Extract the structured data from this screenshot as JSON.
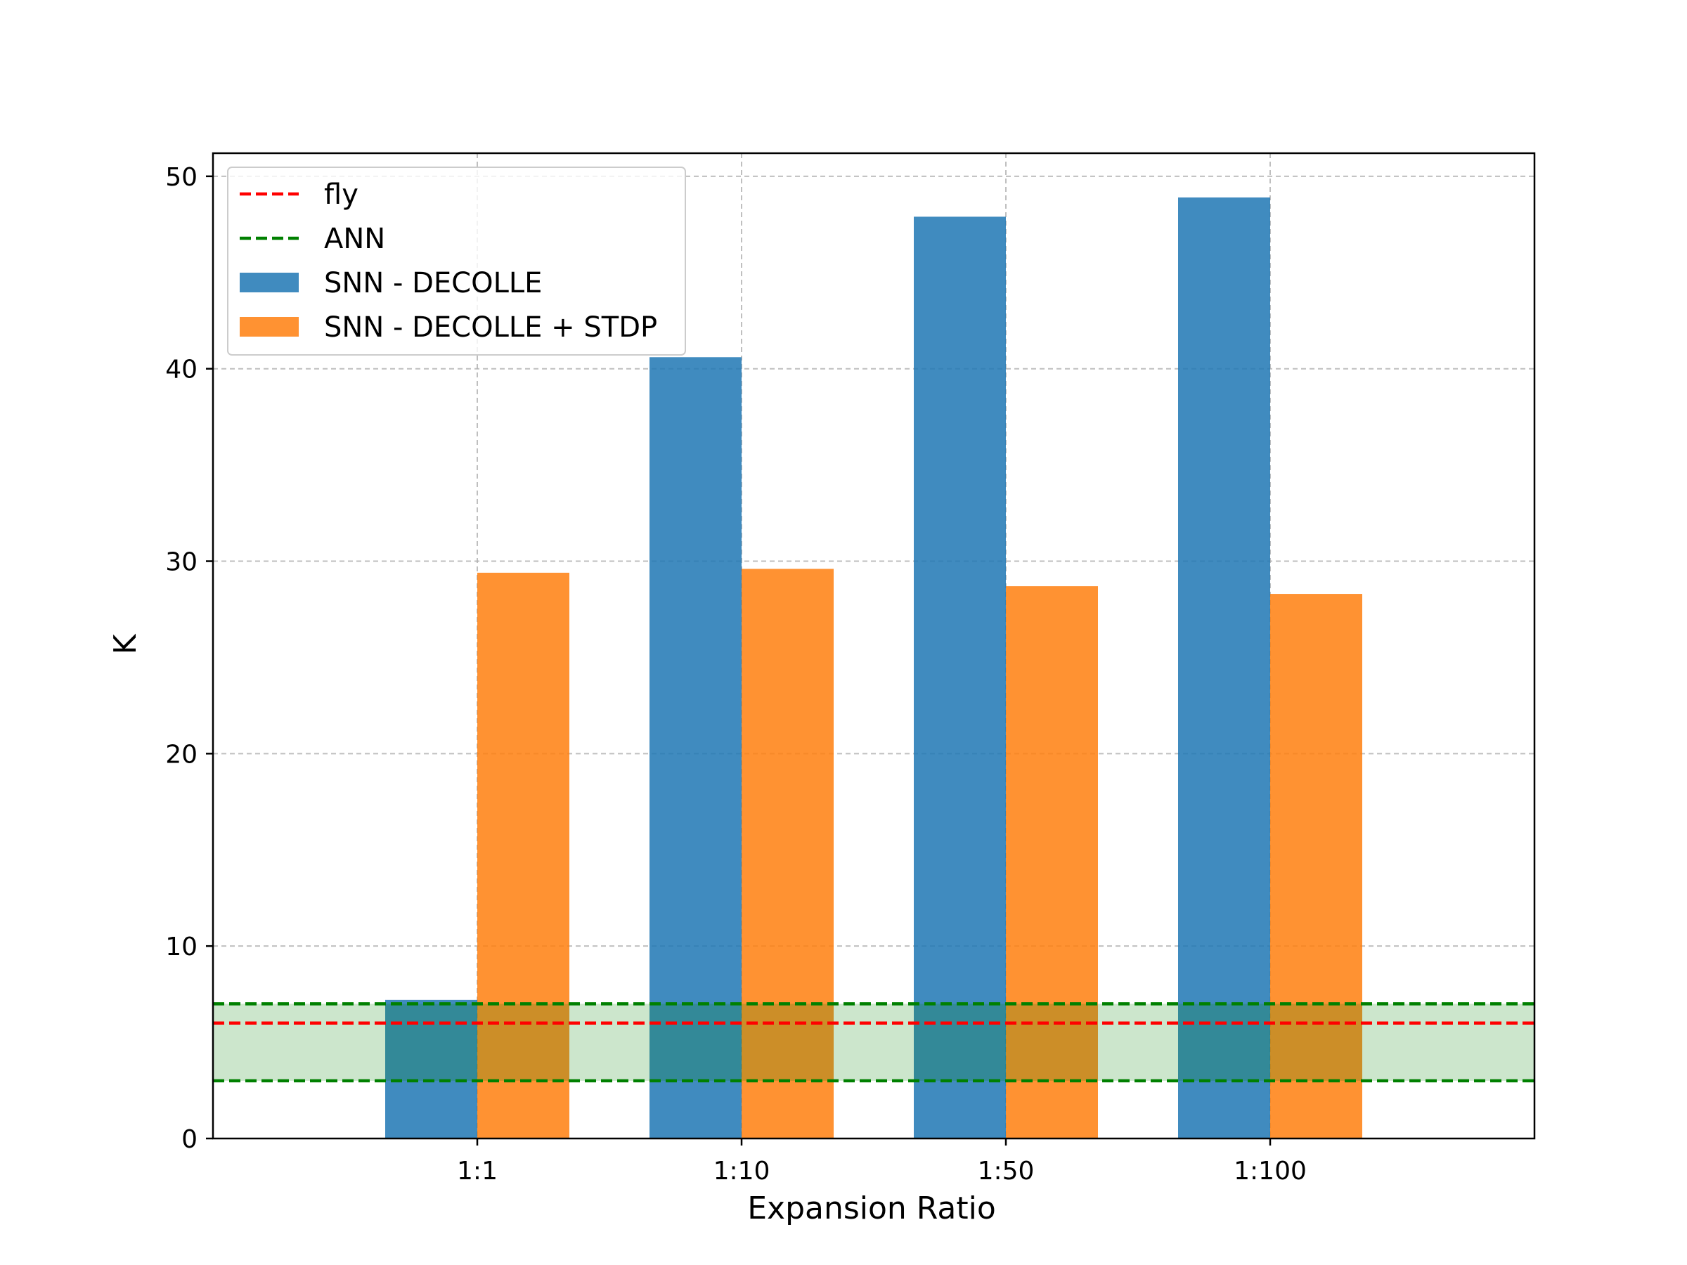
{
  "chart_data": {
    "type": "bar",
    "title": "",
    "xlabel": "Expansion Ratio",
    "ylabel": "K",
    "categories": [
      "1:1",
      "1:10",
      "1:50",
      "1:100"
    ],
    "series": [
      {
        "name": "SNN - DECOLLE",
        "values": [
          7.2,
          40.6,
          47.9,
          48.9
        ],
        "color": "#1f77b4"
      },
      {
        "name": "SNN - DECOLLE + STDP",
        "values": [
          29.4,
          29.6,
          28.7,
          28.3
        ],
        "color": "#ff7f0e"
      }
    ],
    "reference_lines": [
      {
        "name": "fly",
        "values": [
          6
        ],
        "color": "#ff0000",
        "style": "dashed"
      },
      {
        "name": "ANN",
        "values": [
          3,
          7
        ],
        "color": "#008000",
        "style": "dashed",
        "band_fill": true
      }
    ],
    "ylim": [
      0,
      51.2
    ],
    "yticks": [
      0,
      10,
      20,
      30,
      40,
      50
    ],
    "grid": true,
    "legend_position": "upper-left"
  }
}
